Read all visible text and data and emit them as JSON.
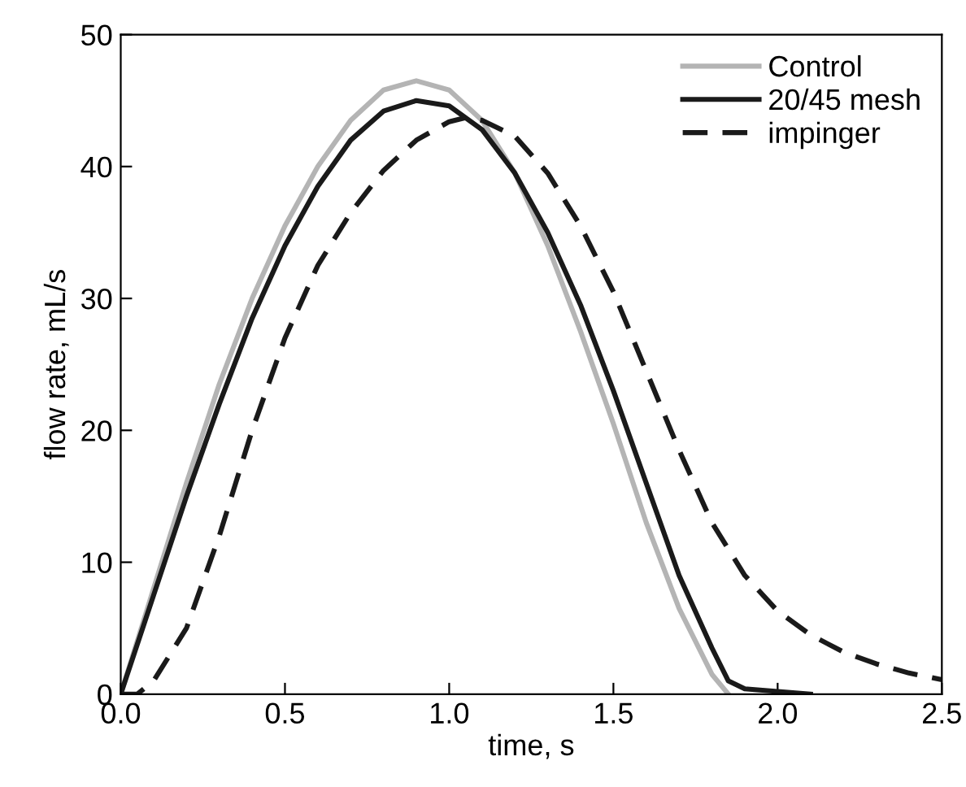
{
  "chart_data": {
    "type": "line",
    "xlabel": "time, s",
    "ylabel": "flow rate, mL/s",
    "xlim": [
      0,
      2.5
    ],
    "ylim": [
      0,
      50
    ],
    "xticks": [
      {
        "value": 0,
        "label": "0.0"
      },
      0.5,
      {
        "value": 1,
        "label": "1.0"
      },
      1.5,
      {
        "value": 2,
        "label": "2.0"
      },
      2.5
    ],
    "yticks": [
      0,
      10,
      20,
      30,
      40,
      50
    ],
    "grid": false,
    "legend": "top right",
    "marker": "none",
    "series": [
      {
        "name": "Control",
        "color": "#b4b4b4",
        "line_style": "solid",
        "x": [
          0,
          0.1,
          0.2,
          0.3,
          0.4,
          0.5,
          0.6,
          0.7,
          0.8,
          0.9,
          1.0,
          1.1,
          1.2,
          1.3,
          1.4,
          1.5,
          1.6,
          1.7,
          1.8,
          1.85
        ],
        "values": [
          0,
          8,
          16,
          23.5,
          30,
          35.5,
          40,
          43.5,
          45.8,
          46.5,
          45.8,
          43.5,
          39.5,
          34,
          27.5,
          20.5,
          13,
          6.5,
          1.5,
          0
        ]
      },
      {
        "name": "20/45 mesh",
        "color": "#1a1a1a",
        "line_style": "solid",
        "x": [
          0,
          0.1,
          0.2,
          0.3,
          0.4,
          0.5,
          0.6,
          0.7,
          0.8,
          0.9,
          1.0,
          1.1,
          1.2,
          1.3,
          1.4,
          1.5,
          1.6,
          1.7,
          1.8,
          1.85,
          1.9,
          2.0,
          2.1
        ],
        "values": [
          0,
          7.5,
          15,
          22,
          28.5,
          34,
          38.5,
          42,
          44.2,
          45,
          44.6,
          42.8,
          39.5,
          35,
          29.5,
          23,
          16,
          9,
          3.5,
          1,
          0.4,
          0.2,
          0
        ]
      },
      {
        "name": "impinger",
        "color": "#1a1a1a",
        "line_style": "dashed",
        "x": [
          0,
          0.05,
          0.1,
          0.2,
          0.3,
          0.4,
          0.5,
          0.6,
          0.7,
          0.8,
          0.9,
          1.0,
          1.05,
          1.1,
          1.2,
          1.3,
          1.4,
          1.5,
          1.6,
          1.7,
          1.8,
          1.9,
          2.0,
          2.1,
          2.2,
          2.3,
          2.4,
          2.5
        ],
        "values": [
          0,
          0,
          1,
          5,
          12,
          20,
          27,
          32.5,
          36.5,
          39.7,
          42,
          43.4,
          43.7,
          43.5,
          42.3,
          39.5,
          35.5,
          30.5,
          24.5,
          18.5,
          13,
          9,
          6.3,
          4.5,
          3.2,
          2.3,
          1.6,
          1.1
        ]
      }
    ]
  }
}
